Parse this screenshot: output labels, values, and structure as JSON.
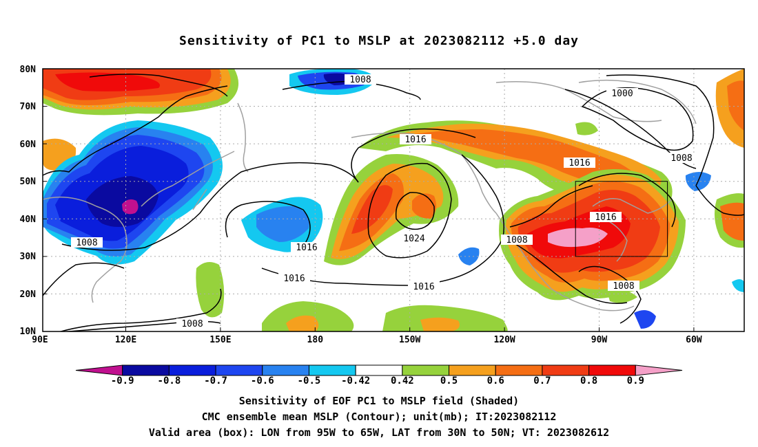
{
  "title": "Sensitivity of PC1 to MSLP at 2023082112 +5.0 day",
  "map": {
    "lat_labels": [
      "80N",
      "70N",
      "60N",
      "50N",
      "40N",
      "30N",
      "20N",
      "10N"
    ],
    "lon_labels": [
      "90E",
      "120E",
      "150E",
      "180",
      "150W",
      "120W",
      "90W",
      "60W"
    ],
    "contour_labels": [
      "1008",
      "1000",
      "1008",
      "1016",
      "1016",
      "1016",
      "1024",
      "1016",
      "1016",
      "1008",
      "1008",
      "1008",
      "1008"
    ],
    "valid_box": {
      "lon": [
        "95W",
        "65W"
      ],
      "lat": [
        "30N",
        "50N"
      ]
    }
  },
  "colorbar": {
    "labels": [
      "-0.9",
      "-0.8",
      "-0.7",
      "-0.6",
      "-0.5",
      "-0.42",
      "0.42",
      "0.5",
      "0.6",
      "0.7",
      "0.8",
      "0.9"
    ],
    "colors": [
      "#c0108f",
      "#0a0aa0",
      "#0a1edc",
      "#1e46f0",
      "#2882f0",
      "#14c8f0",
      "#ffffff",
      "#96d23c",
      "#f5a01e",
      "#f56e14",
      "#f03c14",
      "#f00a0a",
      "#f5a0c8"
    ]
  },
  "captions": {
    "line1": "Sensitivity of EOF PC1 to MSLP field (Shaded)",
    "line2": "CMC ensemble mean MSLP (Contour); unit(mb); IT:2023082112",
    "line3": "Valid area (box): LON from 95W to 65W, LAT from 30N to 50N; VT: 2023082612"
  }
}
